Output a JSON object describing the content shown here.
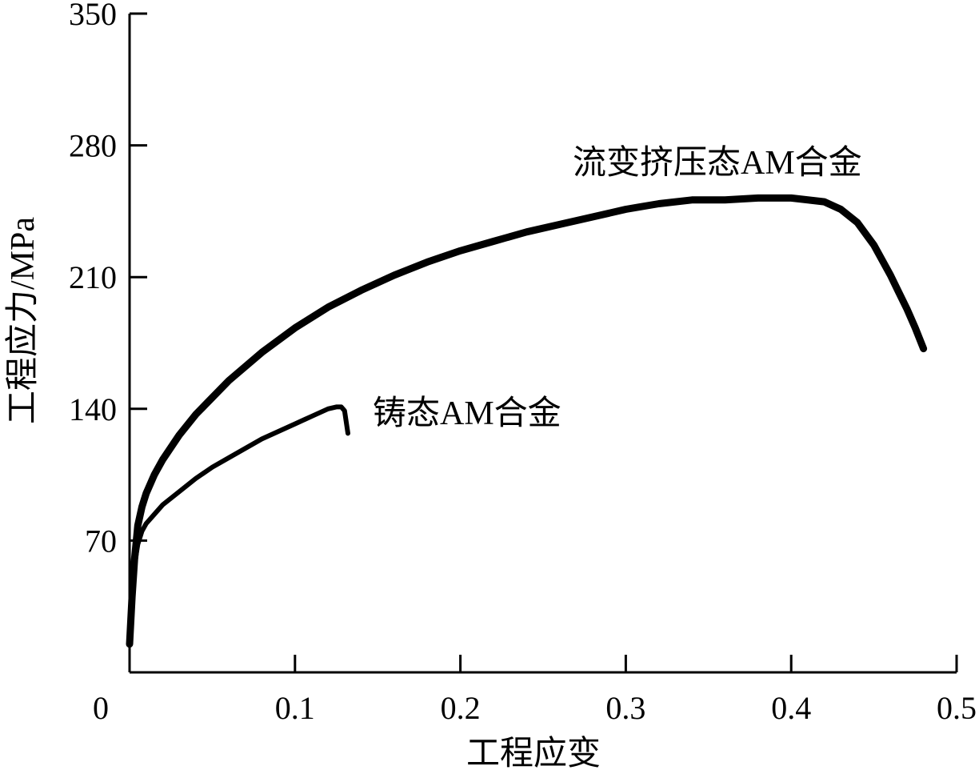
{
  "chart_data": {
    "type": "line",
    "title": "",
    "xlabel": "工程应变",
    "ylabel": "工程应力/MPa",
    "xlim": [
      0,
      0.5
    ],
    "ylim": [
      0,
      350
    ],
    "x_ticks": [
      0,
      0.1,
      0.2,
      0.3,
      0.4,
      0.5
    ],
    "x_tick_labels": [
      "0",
      "0.1",
      "0.2",
      "0.3",
      "0.4",
      "0.5"
    ],
    "y_ticks": [
      70,
      140,
      210,
      280,
      350
    ],
    "y_tick_labels": [
      "70",
      "140",
      "210",
      "280",
      "350"
    ],
    "grid": false,
    "legend": "none",
    "annotations": [
      {
        "text": "流变挤压态AM合金",
        "series": 0
      },
      {
        "text": "铸态AM合金",
        "series": 1
      }
    ],
    "series": [
      {
        "name": "流变挤压态AM合金",
        "color": "#000000",
        "x": [
          0.0,
          0.0015,
          0.003,
          0.005,
          0.0075,
          0.01,
          0.0125,
          0.015,
          0.02,
          0.03,
          0.04,
          0.05,
          0.06,
          0.08,
          0.1,
          0.12,
          0.14,
          0.16,
          0.18,
          0.2,
          0.22,
          0.24,
          0.26,
          0.28,
          0.3,
          0.32,
          0.34,
          0.36,
          0.38,
          0.4,
          0.42,
          0.43,
          0.44,
          0.45,
          0.46,
          0.465,
          0.47,
          0.475,
          0.48
        ],
        "y": [
          15,
          40,
          60,
          78,
          88,
          95,
          100,
          105,
          113,
          126,
          137,
          146,
          155,
          170,
          183,
          194,
          203,
          211,
          218,
          224,
          229,
          234,
          238,
          242,
          246,
          249,
          251,
          251,
          252,
          252,
          250,
          246,
          239,
          227,
          211,
          202,
          193,
          183,
          172
        ]
      },
      {
        "name": "铸态AM合金",
        "color": "#000000",
        "x": [
          0.0,
          0.0015,
          0.003,
          0.005,
          0.0075,
          0.01,
          0.015,
          0.02,
          0.03,
          0.04,
          0.05,
          0.06,
          0.08,
          0.1,
          0.11,
          0.12,
          0.125,
          0.128,
          0.13,
          0.131,
          0.132
        ],
        "y": [
          15,
          40,
          57,
          68,
          75,
          79,
          84,
          89,
          96,
          103,
          109,
          114,
          124,
          132,
          136,
          140,
          141,
          141,
          139,
          133,
          127
        ]
      }
    ]
  }
}
